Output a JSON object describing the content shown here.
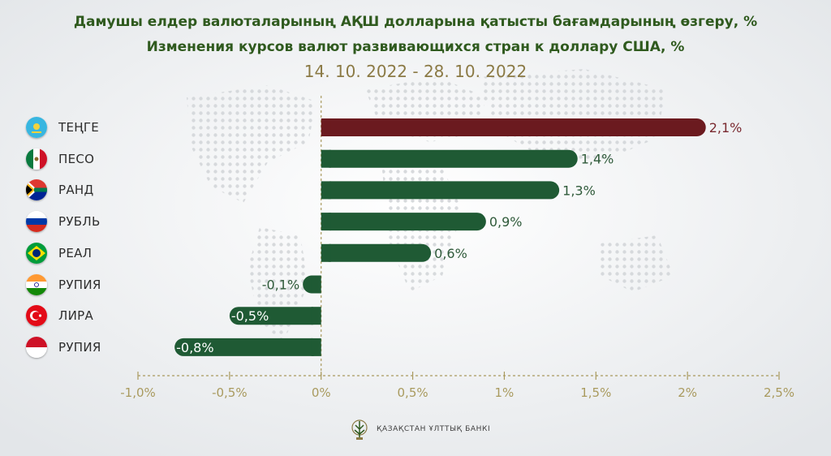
{
  "header": {
    "title_kz": "Дамушы елдер валюталарының АҚШ долларына қатысты бағамдарының өзгеру, %",
    "title_ru": "Изменения курсов валют развивающихся стран к доллару США, %",
    "period": "14. 10. 2022 - 28. 10. 2022"
  },
  "colors": {
    "highlight_bar": "#6b1a1f",
    "bar": "#1f5a34",
    "highlight_label": "#7a2a30",
    "label": "#2f5a3a",
    "axis": "#a99a5e"
  },
  "chart_data": {
    "type": "bar",
    "orientation": "horizontal",
    "categories": [
      "ТЕҢГЕ",
      "ПЕСО",
      "РАНД",
      "РУБЛЬ",
      "РЕАЛ",
      "РУПИЯ",
      "ЛИРА",
      "РУПИЯ"
    ],
    "flags": [
      "kazakhstan-flag-icon",
      "mexico-flag-icon",
      "south-africa-flag-icon",
      "russia-flag-icon",
      "brazil-flag-icon",
      "india-flag-icon",
      "turkey-flag-icon",
      "indonesia-flag-icon"
    ],
    "values": [
      2.1,
      1.4,
      1.3,
      0.9,
      0.6,
      -0.1,
      -0.5,
      -0.8
    ],
    "value_labels": [
      "2,1%",
      "1,4%",
      "1,3%",
      "0,9%",
      "0,6%",
      "-0,1%",
      "-0,5%",
      "-0,8%"
    ],
    "highlight_index": 0,
    "xlim": [
      -1.0,
      2.5
    ],
    "xticks": [
      -1.0,
      -0.5,
      0,
      0.5,
      1,
      1.5,
      2,
      2.5
    ],
    "xtick_labels": [
      "-1,0%",
      "-0,5%",
      "0%",
      "0,5%",
      "1%",
      "1,5%",
      "2%",
      "2,5%"
    ],
    "grid": false
  },
  "footer": {
    "logo_text": "ҚАЗАҚСТАН ҰЛТТЫҚ БАНКІ",
    "logo_icon": "national-bank-emblem-icon"
  }
}
